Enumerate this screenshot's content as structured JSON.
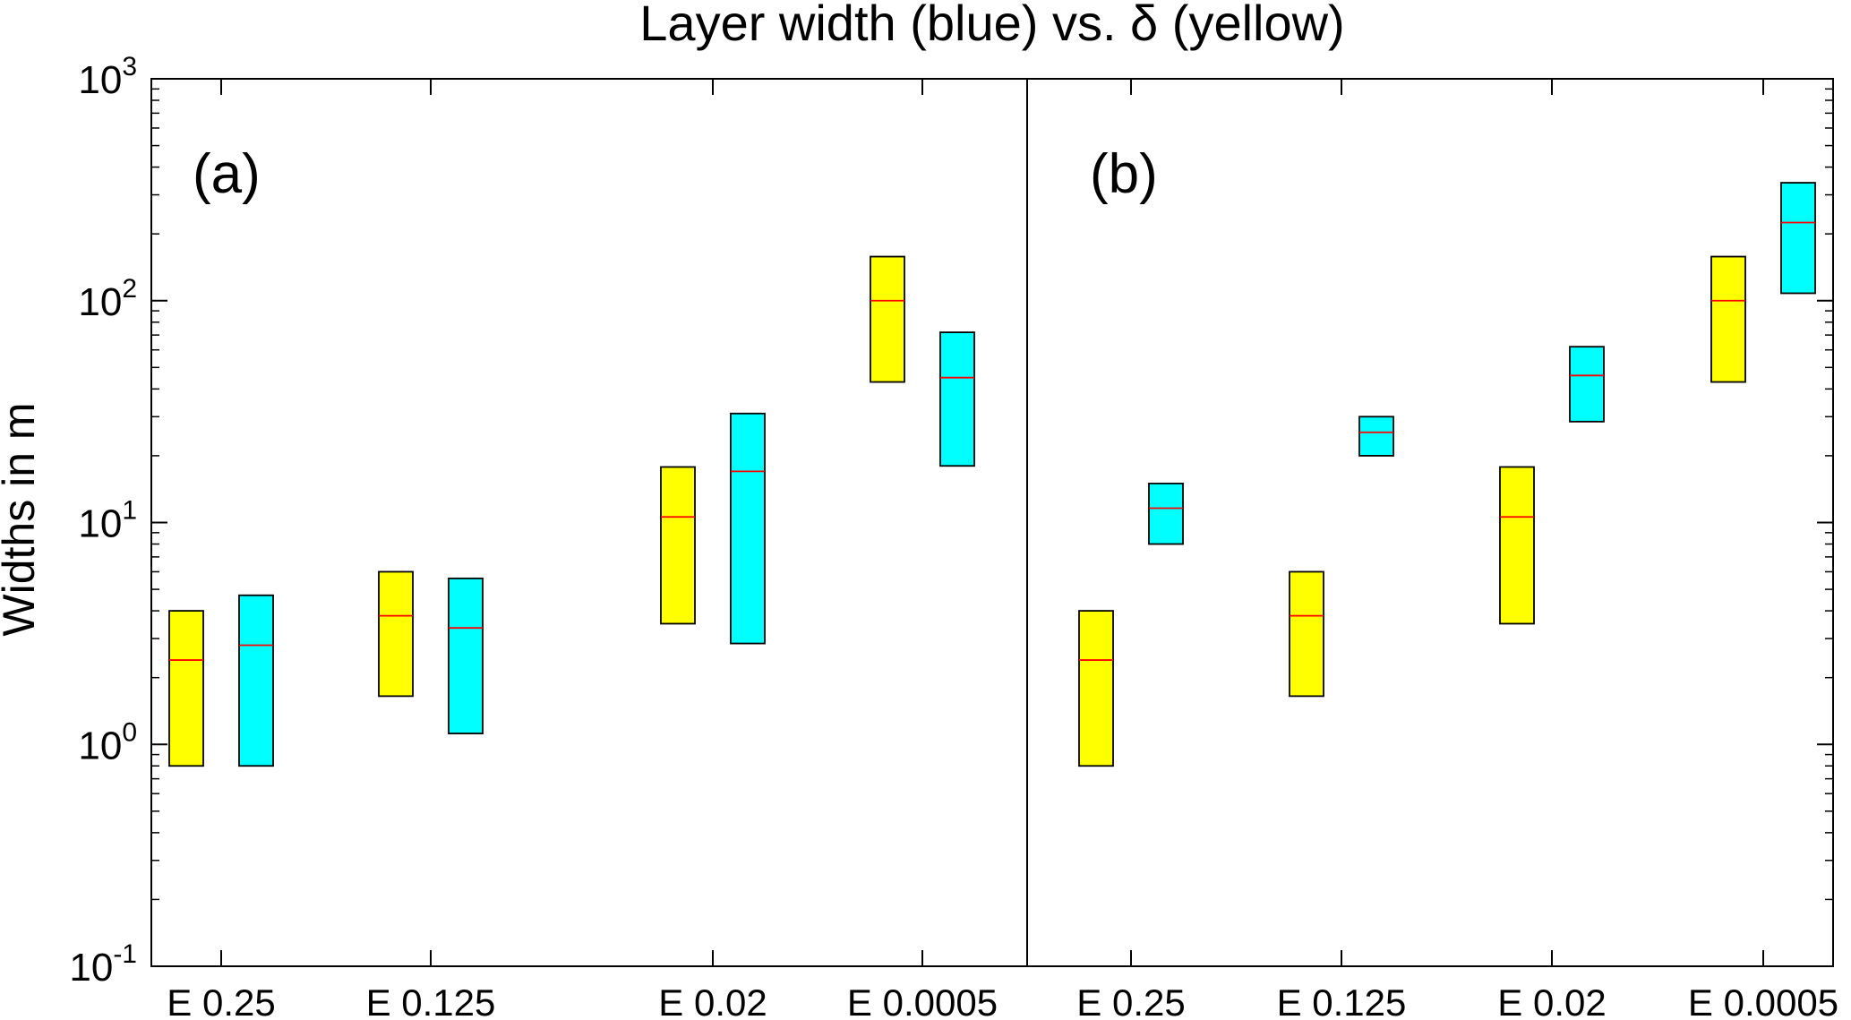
{
  "chart_data": {
    "type": "box",
    "title": "Layer width (blue) vs. δ (yellow)",
    "ylabel": "Widths in m",
    "xlabel": "",
    "yscale": "log",
    "ylim": [
      0.1,
      1000
    ],
    "yticks": [
      {
        "value": 0.1,
        "base": "10",
        "exp": "-1"
      },
      {
        "value": 1,
        "base": "10",
        "exp": "0"
      },
      {
        "value": 10,
        "base": "10",
        "exp": "1"
      },
      {
        "value": 100,
        "base": "10",
        "exp": "2"
      },
      {
        "value": 1000,
        "base": "10",
        "exp": "3"
      }
    ],
    "grid": false,
    "colors": {
      "delta": "#ffff00",
      "width": "#00ffff",
      "median": "#ff0000",
      "edge": "#000000"
    },
    "panels": [
      {
        "label": "(a)",
        "categories": [
          "E 0.25",
          "E 0.125",
          "E 0.02",
          "E 0.0005"
        ],
        "series": [
          {
            "color_key": "delta",
            "boxes": [
              {
                "low": 0.8,
                "median": 2.4,
                "high": 4.0
              },
              {
                "low": 1.65,
                "median": 3.8,
                "high": 6.0
              },
              {
                "low": 3.5,
                "median": 10.6,
                "high": 17.8
              },
              {
                "low": 43,
                "median": 100,
                "high": 158
              }
            ]
          },
          {
            "color_key": "width",
            "boxes": [
              {
                "low": 0.8,
                "median": 2.8,
                "high": 4.7
              },
              {
                "low": 1.12,
                "median": 3.35,
                "high": 5.6
              },
              {
                "low": 2.85,
                "median": 17,
                "high": 31
              },
              {
                "low": 18,
                "median": 45,
                "high": 72
              }
            ]
          }
        ]
      },
      {
        "label": "(b)",
        "categories": [
          "E 0.25",
          "E 0.125",
          "E 0.02",
          "E 0.0005"
        ],
        "series": [
          {
            "color_key": "delta",
            "boxes": [
              {
                "low": 0.8,
                "median": 2.4,
                "high": 4.0
              },
              {
                "low": 1.65,
                "median": 3.8,
                "high": 6.0
              },
              {
                "low": 3.5,
                "median": 10.6,
                "high": 17.8
              },
              {
                "low": 43,
                "median": 100,
                "high": 158
              }
            ]
          },
          {
            "color_key": "width",
            "boxes": [
              {
                "low": 8,
                "median": 11.6,
                "high": 15
              },
              {
                "low": 20,
                "median": 25.5,
                "high": 30
              },
              {
                "low": 28.5,
                "median": 46,
                "high": 62
              },
              {
                "low": 108,
                "median": 225,
                "high": 340
              }
            ]
          }
        ]
      }
    ]
  }
}
